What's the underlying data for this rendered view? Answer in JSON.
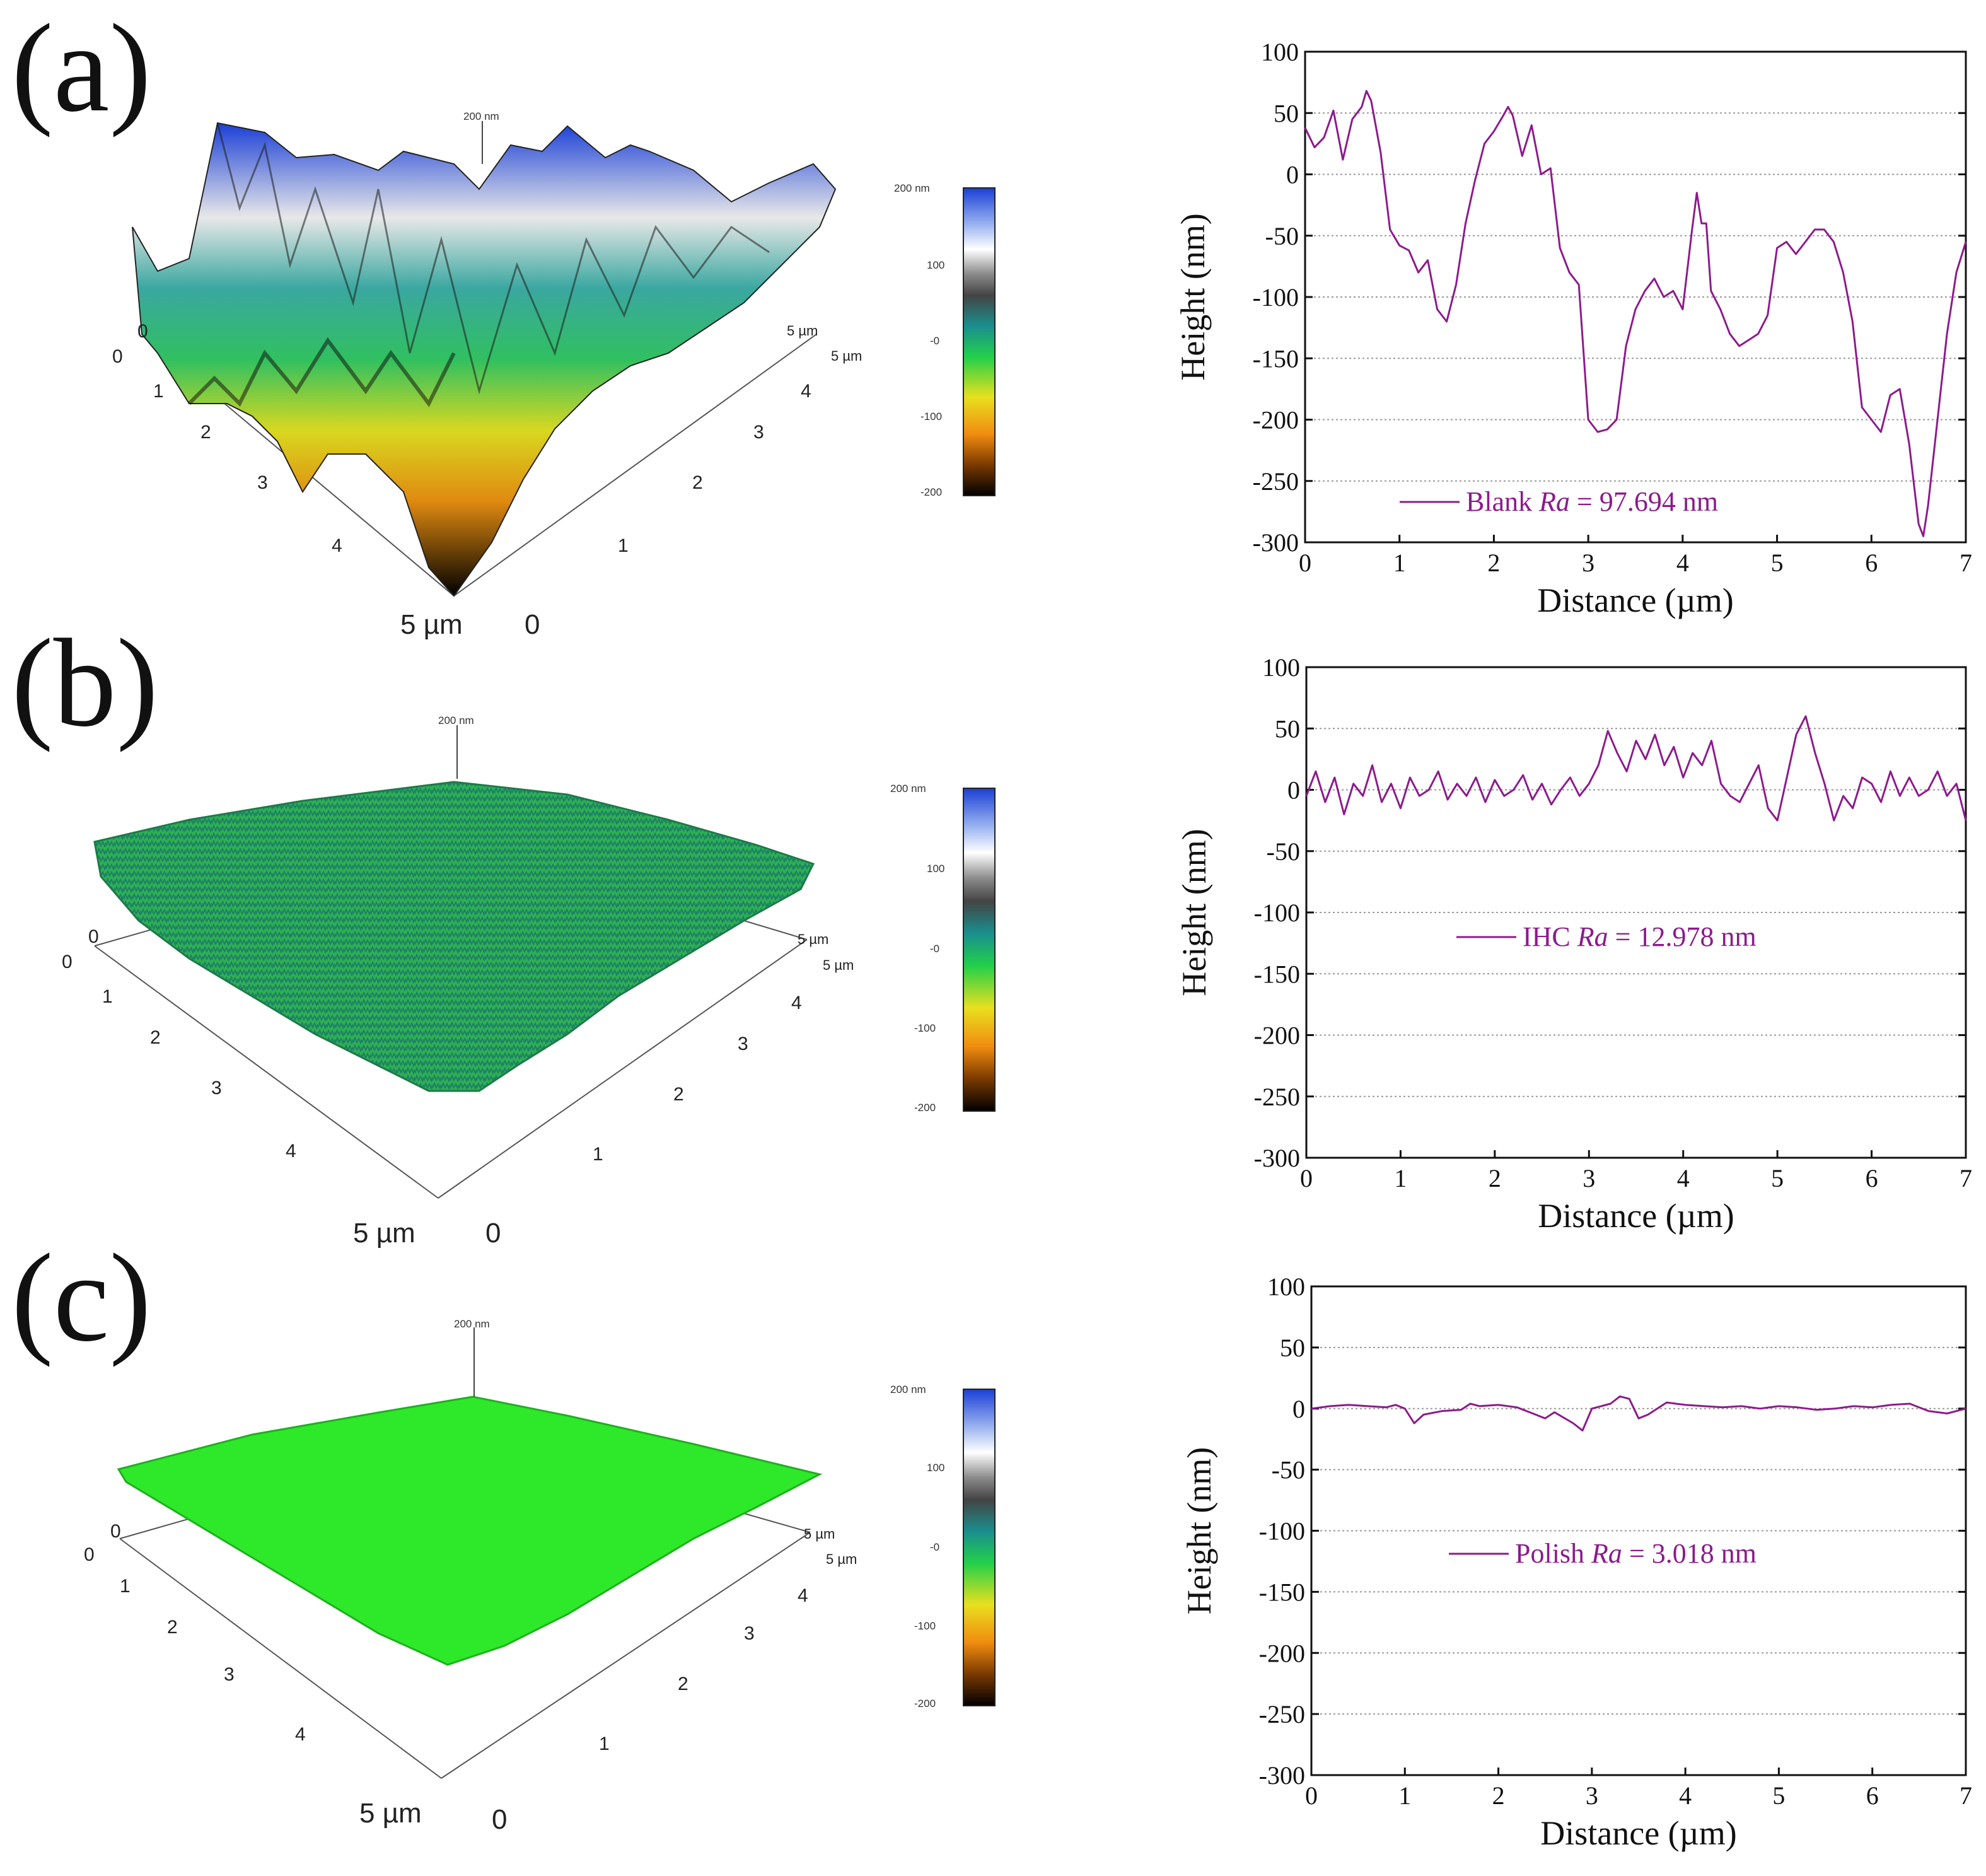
{
  "panels": [
    {
      "letter": "(a)",
      "afm": {
        "x_ticks": [
          "0",
          "1",
          "2",
          "3",
          "4",
          "5 µm"
        ],
        "y_ticks": [
          "0",
          "1",
          "2",
          "3",
          "4",
          "5 µm"
        ],
        "z_marker": "200 nm",
        "corner_zero": "0",
        "roughness_level": "high"
      },
      "colorbar": {
        "ticks": [
          "200 nm",
          "100",
          "-0",
          "-100",
          "-200"
        ]
      }
    },
    {
      "letter": "(b)",
      "afm": {
        "x_ticks": [
          "0",
          "1",
          "2",
          "3",
          "4",
          "5 µm"
        ],
        "y_ticks": [
          "0",
          "1",
          "2",
          "3",
          "4",
          "5 µm"
        ],
        "z_marker": "200 nm",
        "corner_zero": "0",
        "roughness_level": "medium"
      },
      "colorbar": {
        "ticks": [
          "200 nm",
          "100",
          "-0",
          "-100",
          "-200"
        ]
      }
    },
    {
      "letter": "(c)",
      "afm": {
        "x_ticks": [
          "0",
          "1",
          "2",
          "3",
          "4",
          "5 µm"
        ],
        "y_ticks": [
          "0",
          "1",
          "2",
          "3",
          "4",
          "5 µm"
        ],
        "z_marker": "200 nm",
        "corner_zero": "0",
        "roughness_level": "low"
      },
      "colorbar": {
        "ticks": [
          "200 nm",
          "100",
          "-0",
          "-100",
          "-200"
        ]
      }
    }
  ],
  "colors": {
    "profile_line": "#8d1a8d",
    "grid": "#9a9a9a",
    "colorbar_stops": [
      "#1a3fd6",
      "#ffffff",
      "#555555",
      "#1a8f8f",
      "#22d04a",
      "#e8e01e",
      "#f08c10",
      "#000000"
    ]
  },
  "chart_data": [
    {
      "type": "line",
      "title": "",
      "xlabel": "Distance (µm)",
      "ylabel": "Height (nm)",
      "xlim": [
        0,
        7
      ],
      "ylim": [
        -300,
        100
      ],
      "x_ticks": [
        0,
        1,
        2,
        3,
        4,
        5,
        6,
        7
      ],
      "y_ticks": [
        100,
        50,
        0,
        -50,
        -100,
        -150,
        -200,
        -250,
        -300
      ],
      "grid": "horizontal dotted",
      "legend": {
        "position": "bottom-center",
        "label": "Blank",
        "ra_symbol": "Ra",
        "ra_text": "= 97.694 nm"
      },
      "series": [
        {
          "name": "Blank",
          "x": [
            0,
            0.1,
            0.2,
            0.3,
            0.4,
            0.5,
            0.6,
            0.65,
            0.7,
            0.8,
            0.9,
            1.0,
            1.1,
            1.2,
            1.3,
            1.4,
            1.5,
            1.6,
            1.7,
            1.8,
            1.9,
            2.0,
            2.1,
            2.15,
            2.2,
            2.3,
            2.4,
            2.5,
            2.6,
            2.7,
            2.8,
            2.9,
            3.0,
            3.1,
            3.2,
            3.3,
            3.4,
            3.5,
            3.6,
            3.7,
            3.8,
            3.9,
            4.0,
            4.1,
            4.15,
            4.2,
            4.25,
            4.3,
            4.4,
            4.5,
            4.6,
            4.7,
            4.8,
            4.9,
            5.0,
            5.1,
            5.2,
            5.3,
            5.4,
            5.5,
            5.55,
            5.6,
            5.7,
            5.8,
            5.9,
            6.0,
            6.1,
            6.2,
            6.3,
            6.4,
            6.5,
            6.55,
            6.6,
            6.7,
            6.8,
            6.9,
            7.0
          ],
          "y": [
            38,
            22,
            30,
            52,
            12,
            45,
            55,
            68,
            60,
            18,
            -45,
            -58,
            -62,
            -80,
            -70,
            -110,
            -120,
            -90,
            -40,
            -5,
            25,
            35,
            48,
            55,
            48,
            15,
            40,
            0,
            5,
            -60,
            -80,
            -90,
            -200,
            -210,
            -208,
            -200,
            -140,
            -110,
            -95,
            -85,
            -100,
            -95,
            -110,
            -45,
            -15,
            -40,
            -40,
            -95,
            -110,
            -130,
            -140,
            -135,
            -130,
            -115,
            -60,
            -55,
            -65,
            -55,
            -45,
            -45,
            -50,
            -55,
            -80,
            -120,
            -190,
            -200,
            -210,
            -180,
            -175,
            -220,
            -285,
            -295,
            -270,
            -200,
            -130,
            -80,
            -55
          ]
        }
      ]
    },
    {
      "type": "line",
      "title": "",
      "xlabel": "Distance (µm)",
      "ylabel": "Height (nm)",
      "xlim": [
        0,
        7
      ],
      "ylim": [
        -300,
        100
      ],
      "x_ticks": [
        0,
        1,
        2,
        3,
        4,
        5,
        6,
        7
      ],
      "y_ticks": [
        100,
        50,
        0,
        -50,
        -100,
        -150,
        -200,
        -250,
        -300
      ],
      "grid": "horizontal dotted",
      "legend": {
        "position": "center",
        "label": "IHC",
        "ra_symbol": "Ra",
        "ra_text": "= 12.978 nm"
      },
      "series": [
        {
          "name": "IHC",
          "x": [
            0,
            0.1,
            0.2,
            0.3,
            0.4,
            0.5,
            0.6,
            0.7,
            0.8,
            0.9,
            1.0,
            1.1,
            1.2,
            1.3,
            1.4,
            1.5,
            1.6,
            1.7,
            1.8,
            1.9,
            2.0,
            2.1,
            2.2,
            2.3,
            2.4,
            2.5,
            2.6,
            2.7,
            2.8,
            2.9,
            3.0,
            3.1,
            3.2,
            3.3,
            3.4,
            3.5,
            3.6,
            3.7,
            3.8,
            3.9,
            4.0,
            4.1,
            4.2,
            4.3,
            4.4,
            4.5,
            4.6,
            4.7,
            4.8,
            4.9,
            5.0,
            5.1,
            5.2,
            5.3,
            5.4,
            5.5,
            5.6,
            5.7,
            5.8,
            5.9,
            6.0,
            6.1,
            6.2,
            6.3,
            6.4,
            6.5,
            6.6,
            6.7,
            6.8,
            6.9,
            7.0
          ],
          "y": [
            -5,
            15,
            -10,
            10,
            -20,
            5,
            -5,
            20,
            -10,
            5,
            -15,
            10,
            -5,
            0,
            15,
            -8,
            5,
            -5,
            10,
            -10,
            8,
            -5,
            0,
            12,
            -8,
            5,
            -12,
            0,
            10,
            -5,
            5,
            20,
            48,
            30,
            15,
            40,
            25,
            45,
            20,
            35,
            10,
            30,
            20,
            40,
            5,
            -5,
            -10,
            5,
            20,
            -15,
            -25,
            10,
            45,
            60,
            30,
            5,
            -25,
            -5,
            -15,
            10,
            5,
            -10,
            15,
            -5,
            10,
            -5,
            0,
            15,
            -5,
            5,
            -25
          ]
        }
      ]
    },
    {
      "type": "line",
      "title": "",
      "xlabel": "Distance (µm)",
      "ylabel": "Height (nm)",
      "xlim": [
        0,
        7
      ],
      "ylim": [
        -300,
        100
      ],
      "x_ticks": [
        0,
        1,
        2,
        3,
        4,
        5,
        6,
        7
      ],
      "y_ticks": [
        100,
        50,
        0,
        -50,
        -100,
        -150,
        -200,
        -250,
        -300
      ],
      "grid": "horizontal dotted",
      "legend": {
        "position": "center",
        "label": "Polish",
        "ra_symbol": "Ra",
        "ra_text": "= 3.018 nm"
      },
      "series": [
        {
          "name": "Polish",
          "x": [
            0,
            0.2,
            0.4,
            0.6,
            0.8,
            0.9,
            1.0,
            1.1,
            1.2,
            1.4,
            1.6,
            1.7,
            1.8,
            2.0,
            2.2,
            2.4,
            2.5,
            2.6,
            2.8,
            2.9,
            3.0,
            3.1,
            3.2,
            3.3,
            3.4,
            3.5,
            3.6,
            3.8,
            4.0,
            4.2,
            4.4,
            4.6,
            4.8,
            5.0,
            5.2,
            5.4,
            5.6,
            5.8,
            6.0,
            6.2,
            6.4,
            6.6,
            6.8,
            7.0
          ],
          "y": [
            0,
            2,
            3,
            2,
            1,
            3,
            0,
            -12,
            -5,
            -2,
            -1,
            4,
            2,
            3,
            1,
            -5,
            -8,
            -3,
            -12,
            -18,
            0,
            2,
            4,
            10,
            8,
            -8,
            -5,
            5,
            3,
            2,
            1,
            2,
            0,
            2,
            1,
            -1,
            0,
            2,
            1,
            3,
            4,
            -2,
            -4,
            0
          ]
        }
      ]
    }
  ]
}
